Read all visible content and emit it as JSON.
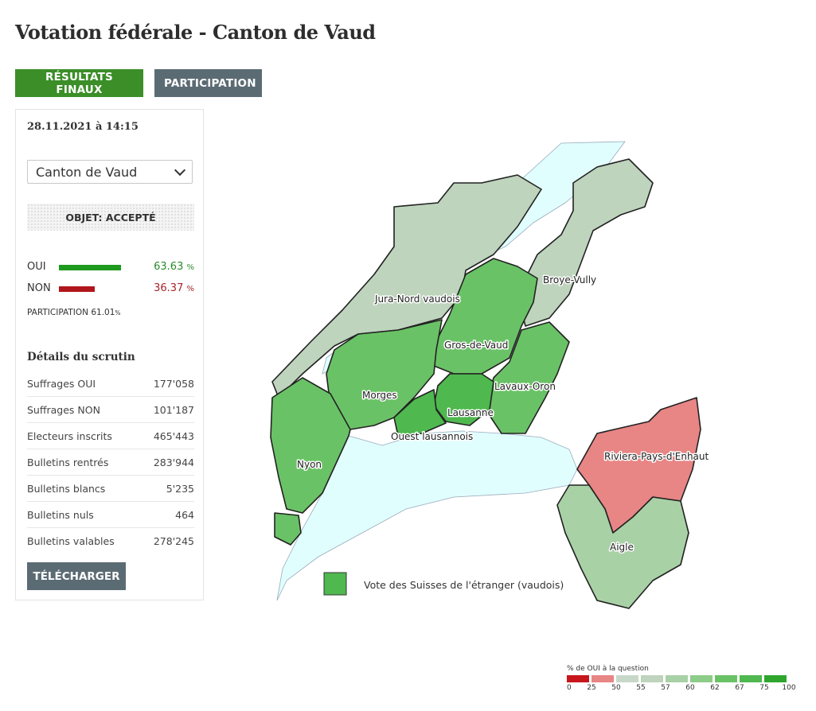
{
  "page": {
    "title": "Votation fédérale - Canton de Vaud"
  },
  "tabs": {
    "results_label": "RÉSULTATS FINAUX",
    "participation_label": "PARTICIPATION"
  },
  "panel": {
    "datetime": "28.11.2021 à 14:15",
    "select_value": "Canton de Vaud",
    "status": "OBJET: ACCEPTÉ",
    "oui": {
      "label": "OUI",
      "value": "63.63",
      "unit": "%",
      "share": 63.63
    },
    "non": {
      "label": "NON",
      "value": "36.37",
      "unit": "%",
      "share": 36.37
    },
    "participation": {
      "label": "PARTICIPATION",
      "value": "61.01",
      "unit": "%"
    },
    "details_title": "Détails du scrutin",
    "details": [
      {
        "label": "Suffrages OUI",
        "value": "177'058"
      },
      {
        "label": "Suffrages NON",
        "value": "101'187"
      },
      {
        "label": "Electeurs inscrits",
        "value": "465'443"
      },
      {
        "label": "Bulletins rentrés",
        "value": "283'944"
      },
      {
        "label": "Bulletins blancs",
        "value": "5'235"
      },
      {
        "label": "Bulletins nuls",
        "value": "464"
      },
      {
        "label": "Bulletins valables",
        "value": "278'245"
      }
    ],
    "download_label": "TÉLÉCHARGER"
  },
  "colors": {
    "oui": "#1f9a1f",
    "non": "#b0161b",
    "lake": "#e1feff",
    "results_tab": "#3b8e28",
    "secondary_button": "#5b6b74",
    "abroad_swatch": "#4fb84f"
  },
  "map": {
    "districts": [
      {
        "name": "Jura-Nord vaudois",
        "yes_share": 55
      },
      {
        "name": "Broye-Vully",
        "yes_share": 56
      },
      {
        "name": "Gros-de-Vaud",
        "yes_share": 63
      },
      {
        "name": "Morges",
        "yes_share": 63
      },
      {
        "name": "Lavaux-Oron",
        "yes_share": 64
      },
      {
        "name": "Lausanne",
        "yes_share": 72
      },
      {
        "name": "Ouest lausannois",
        "yes_share": 70
      },
      {
        "name": "Nyon",
        "yes_share": 66
      },
      {
        "name": "Riviera-Pays-d'Enhaut",
        "yes_share": 48
      },
      {
        "name": "Aigle",
        "yes_share": 58
      }
    ],
    "abroad_label": "Vote des Suisses de l'étranger (vaudois)",
    "legend": {
      "title": "% de OUI à la question",
      "ticks": [
        "0",
        "25",
        "50",
        "55",
        "57",
        "60",
        "62",
        "67",
        "75",
        "100"
      ],
      "colors": [
        "#c7161c",
        "#e88585",
        "#c8d8c8",
        "#bed4bd",
        "#a9d1a6",
        "#8ecc89",
        "#6ac266",
        "#4fb84f",
        "#2ea62e"
      ]
    }
  }
}
